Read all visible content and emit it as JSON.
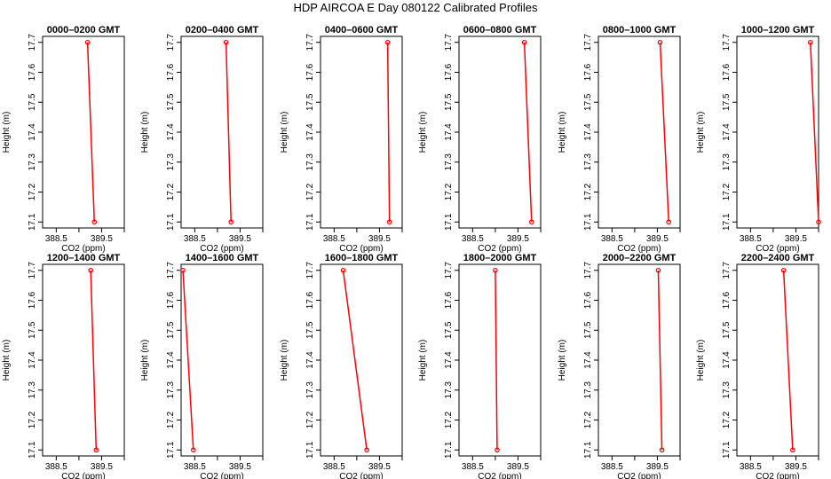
{
  "figure": {
    "title": "HDP  AIRCOA E  Day 080122  Calibrated Profiles"
  },
  "chart_data": [
    {
      "type": "line",
      "title": "0000–0200 GMT",
      "xlabel": "CO2 (ppm)",
      "ylabel": "Height (m)",
      "xlim": [
        388.2,
        390.0
      ],
      "ylim": [
        17.08,
        17.72
      ],
      "xticks": [
        "388.5",
        "389.5"
      ],
      "yticks": [
        "17.1",
        "17.2",
        "17.3",
        "17.4",
        "17.5",
        "17.6",
        "17.7"
      ],
      "x": [
        389.34,
        389.19
      ],
      "y": [
        17.1,
        17.7
      ],
      "color": "#ff0000",
      "marker": "circle"
    },
    {
      "type": "line",
      "title": "0200–0400 GMT",
      "xlabel": "CO2 (ppm)",
      "ylabel": "Height (m)",
      "xlim": [
        388.2,
        390.0
      ],
      "ylim": [
        17.08,
        17.72
      ],
      "xticks": [
        "388.5",
        "389.5"
      ],
      "yticks": [
        "17.1",
        "17.2",
        "17.3",
        "17.4",
        "17.5",
        "17.6",
        "17.7"
      ],
      "x": [
        389.3,
        389.19
      ],
      "y": [
        17.1,
        17.7
      ],
      "color": "#ff0000",
      "marker": "circle"
    },
    {
      "type": "line",
      "title": "0400–0600 GMT",
      "xlabel": "CO2 (ppm)",
      "ylabel": "Height (m)",
      "xlim": [
        388.2,
        390.0
      ],
      "ylim": [
        17.08,
        17.72
      ],
      "xticks": [
        "388.5",
        "389.5"
      ],
      "yticks": [
        "17.1",
        "17.2",
        "17.3",
        "17.4",
        "17.5",
        "17.6",
        "17.7"
      ],
      "x": [
        389.72,
        389.68
      ],
      "y": [
        17.1,
        17.7
      ],
      "color": "#ff0000",
      "marker": "circle"
    },
    {
      "type": "line",
      "title": "0600–0800 GMT",
      "xlabel": "CO2 (ppm)",
      "ylabel": "Height (m)",
      "xlim": [
        388.2,
        390.0
      ],
      "ylim": [
        17.08,
        17.72
      ],
      "xticks": [
        "388.5",
        "389.5"
      ],
      "yticks": [
        "17.1",
        "17.2",
        "17.3",
        "17.4",
        "17.5",
        "17.6",
        "17.7"
      ],
      "x": [
        389.8,
        389.64
      ],
      "y": [
        17.1,
        17.7
      ],
      "color": "#ff0000",
      "marker": "circle"
    },
    {
      "type": "line",
      "title": "0800–1000 GMT",
      "xlabel": "CO2 (ppm)",
      "ylabel": "Height (m)",
      "xlim": [
        388.2,
        390.0
      ],
      "ylim": [
        17.08,
        17.72
      ],
      "xticks": [
        "388.5",
        "389.5"
      ],
      "yticks": [
        "17.1",
        "17.2",
        "17.3",
        "17.4",
        "17.5",
        "17.6",
        "17.7"
      ],
      "x": [
        389.75,
        389.56
      ],
      "y": [
        17.1,
        17.7
      ],
      "color": "#ff0000",
      "marker": "circle"
    },
    {
      "type": "line",
      "title": "1000–1200 GMT",
      "xlabel": "CO2 (ppm)",
      "ylabel": "Height (m)",
      "xlim": [
        388.2,
        390.0
      ],
      "ylim": [
        17.08,
        17.72
      ],
      "xticks": [
        "388.5",
        "389.5"
      ],
      "yticks": [
        "17.1",
        "17.2",
        "17.3",
        "17.4",
        "17.5",
        "17.6",
        "17.7"
      ],
      "x": [
        390.0,
        389.82
      ],
      "y": [
        17.1,
        17.7
      ],
      "color": "#ff0000",
      "marker": "circle"
    },
    {
      "type": "line",
      "title": "1200–1400 GMT",
      "xlabel": "CO2 (ppm)",
      "ylabel": "Height (m)",
      "xlim": [
        388.2,
        390.0
      ],
      "ylim": [
        17.08,
        17.72
      ],
      "xticks": [
        "388.5",
        "389.5"
      ],
      "yticks": [
        "17.1",
        "17.2",
        "17.3",
        "17.4",
        "17.5",
        "17.6",
        "17.7"
      ],
      "x": [
        389.38,
        389.26
      ],
      "y": [
        17.1,
        17.7
      ],
      "color": "#ff0000",
      "marker": "circle"
    },
    {
      "type": "line",
      "title": "1400–1600 GMT",
      "xlabel": "CO2 (ppm)",
      "ylabel": "Height (m)",
      "xlim": [
        388.2,
        390.0
      ],
      "ylim": [
        17.08,
        17.72
      ],
      "xticks": [
        "388.5",
        "389.5"
      ],
      "yticks": [
        "17.1",
        "17.2",
        "17.3",
        "17.4",
        "17.5",
        "17.6",
        "17.7"
      ],
      "x": [
        388.47,
        388.24
      ],
      "y": [
        17.1,
        17.7
      ],
      "color": "#ff0000",
      "marker": "circle"
    },
    {
      "type": "line",
      "title": "1600–1800 GMT",
      "xlabel": "CO2 (ppm)",
      "ylabel": "Height (m)",
      "xlim": [
        388.2,
        390.0
      ],
      "ylim": [
        17.08,
        17.72
      ],
      "xticks": [
        "388.5",
        "389.5"
      ],
      "yticks": [
        "17.1",
        "17.2",
        "17.3",
        "17.4",
        "17.5",
        "17.6",
        "17.7"
      ],
      "x": [
        389.22,
        388.7
      ],
      "y": [
        17.1,
        17.7
      ],
      "color": "#ff0000",
      "marker": "circle"
    },
    {
      "type": "line",
      "title": "1800–2000 GMT",
      "xlabel": "CO2 (ppm)",
      "ylabel": "Height (m)",
      "xlim": [
        388.2,
        390.0
      ],
      "ylim": [
        17.08,
        17.72
      ],
      "xticks": [
        "388.5",
        "389.5"
      ],
      "yticks": [
        "17.1",
        "17.2",
        "17.3",
        "17.4",
        "17.5",
        "17.6",
        "17.7"
      ],
      "x": [
        389.04,
        389.0
      ],
      "y": [
        17.1,
        17.7
      ],
      "color": "#ff0000",
      "marker": "circle"
    },
    {
      "type": "line",
      "title": "2000–2200 GMT",
      "xlabel": "CO2 (ppm)",
      "ylabel": "Height (m)",
      "xlim": [
        388.2,
        390.0
      ],
      "ylim": [
        17.08,
        17.72
      ],
      "xticks": [
        "388.5",
        "389.5"
      ],
      "yticks": [
        "17.1",
        "17.2",
        "17.3",
        "17.4",
        "17.5",
        "17.6",
        "17.7"
      ],
      "x": [
        389.6,
        389.52
      ],
      "y": [
        17.1,
        17.7
      ],
      "color": "#ff0000",
      "marker": "circle"
    },
    {
      "type": "line",
      "title": "2200–2400 GMT",
      "xlabel": "CO2 (ppm)",
      "ylabel": "Height (m)",
      "xlim": [
        388.2,
        390.0
      ],
      "ylim": [
        17.08,
        17.72
      ],
      "xticks": [
        "388.5",
        "389.5"
      ],
      "yticks": [
        "17.1",
        "17.2",
        "17.3",
        "17.4",
        "17.5",
        "17.6",
        "17.7"
      ],
      "x": [
        389.43,
        389.23
      ],
      "y": [
        17.1,
        17.7
      ],
      "color": "#ff0000",
      "marker": "circle"
    }
  ]
}
